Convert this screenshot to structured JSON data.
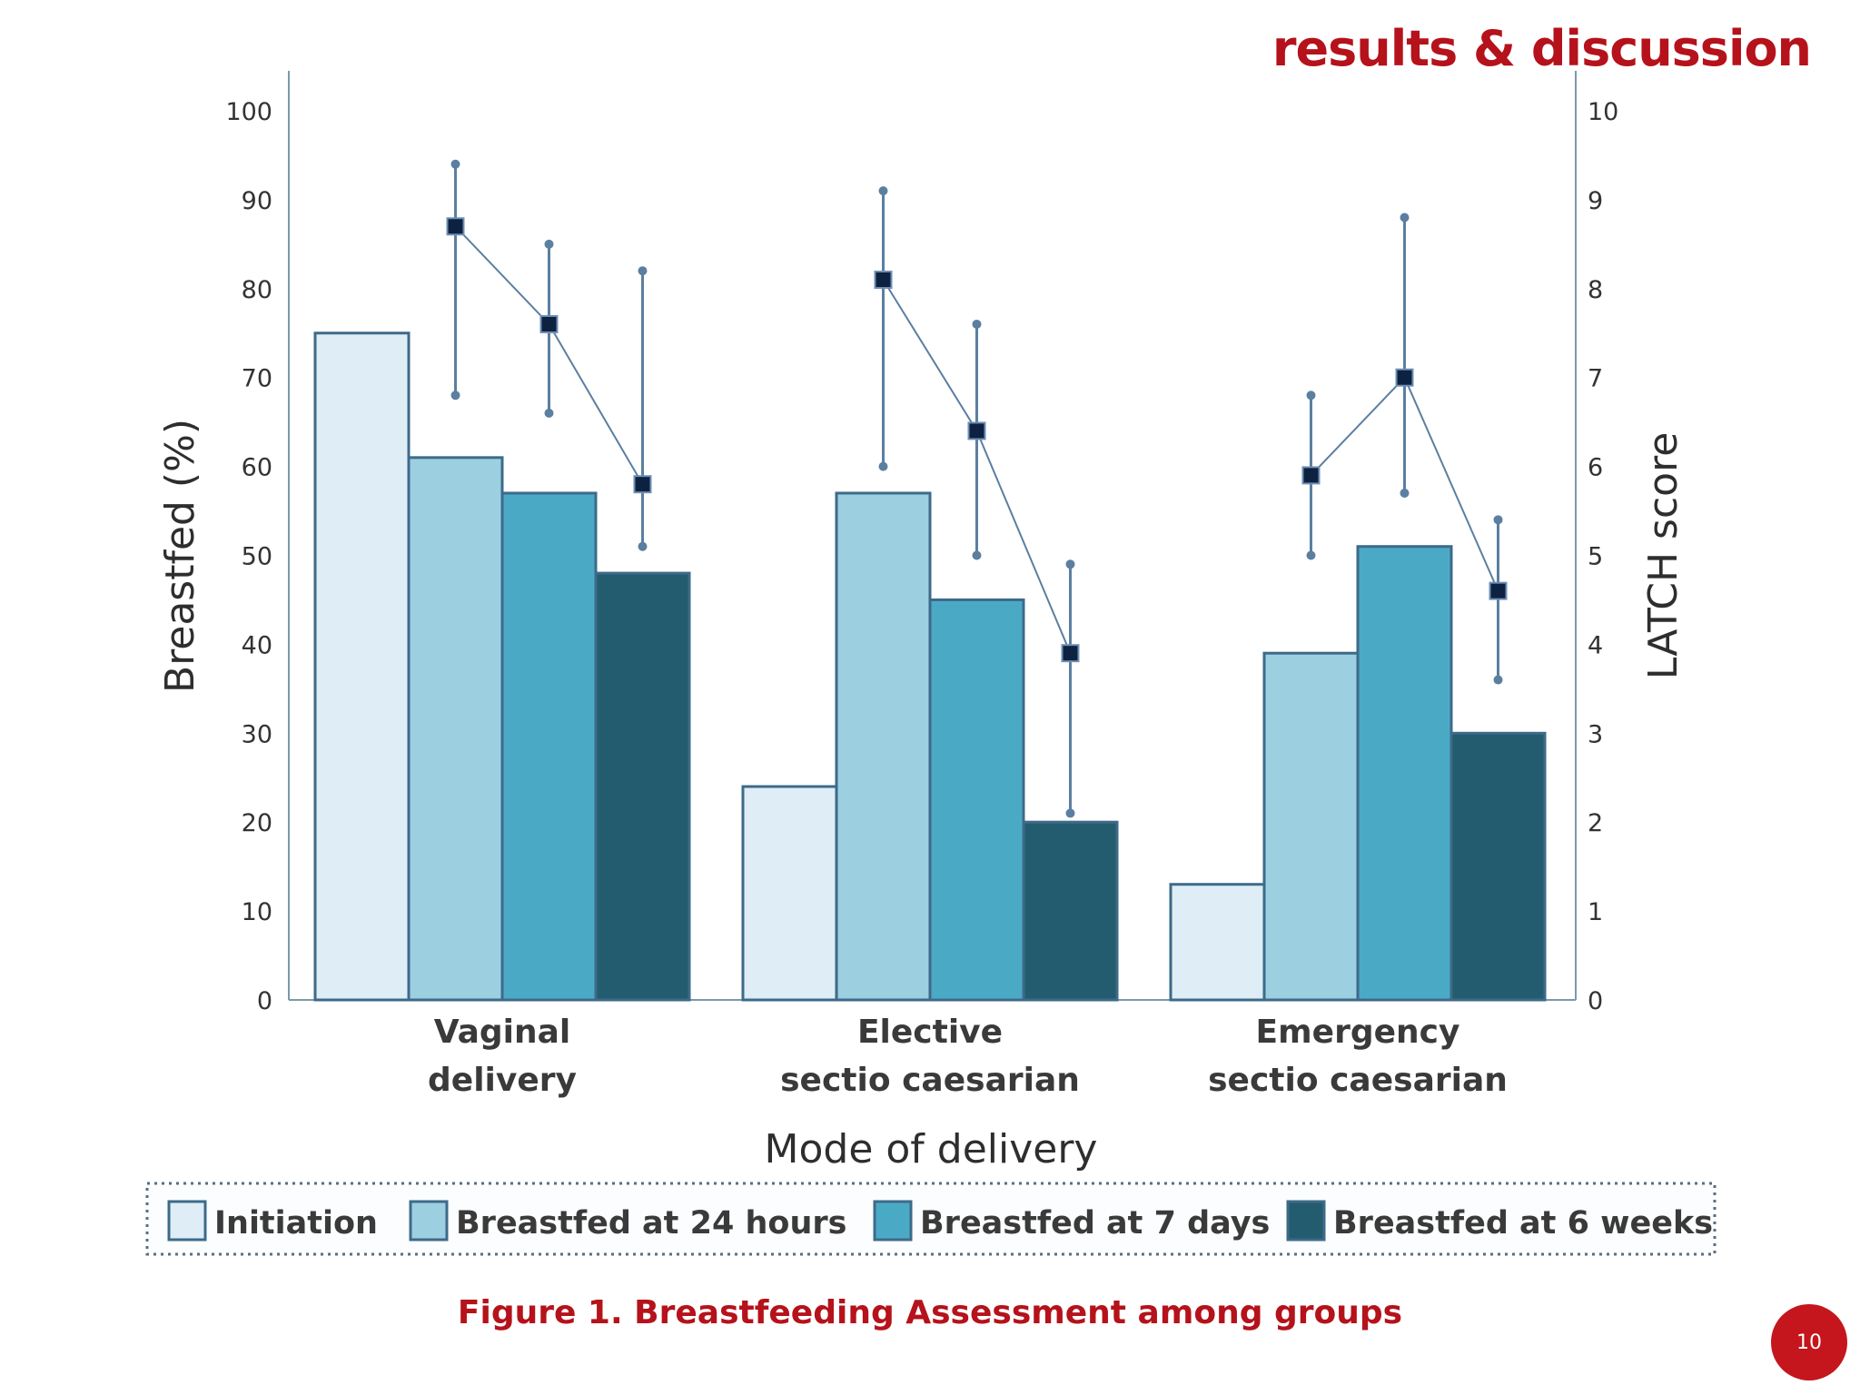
{
  "header": {
    "section_title": "results & discussion"
  },
  "caption": "Figure 1. Breastfeeding Assessment  among groups",
  "page_number": "10",
  "chart_data": {
    "type": "bar",
    "title": "",
    "xlabel": "Mode of delivery",
    "ylabel": "Breastfed (%)",
    "y2label": "LATCH score",
    "ylim": [
      0,
      100
    ],
    "y2lim": [
      0,
      10
    ],
    "yticks": [
      "0",
      "10",
      "20",
      "30",
      "40",
      "50",
      "60",
      "70",
      "80",
      "90",
      "100"
    ],
    "y2ticks": [
      "0",
      "1",
      "2",
      "3",
      "4",
      "5",
      "6",
      "7",
      "8",
      "9",
      "10"
    ],
    "categories": [
      {
        "line1": "Vaginal",
        "line2": "delivery"
      },
      {
        "line1": "Elective",
        "line2": "sectio caesarian"
      },
      {
        "line1": "Emergency",
        "line2": "sectio caesarian"
      }
    ],
    "series": [
      {
        "name": "Initiation",
        "color": "#deedf6",
        "values": [
          75,
          24,
          13
        ]
      },
      {
        "name": "Breastfed at 24 hours",
        "color": "#9ccfe0",
        "values": [
          61,
          57,
          39
        ]
      },
      {
        "name": "Breastfed at 7 days",
        "color": "#4aaac6",
        "values": [
          57,
          45,
          51
        ]
      },
      {
        "name": "Breastfed at 6 weeks",
        "color": "#235c6e",
        "values": [
          48,
          20,
          30
        ]
      }
    ],
    "latch": [
      {
        "category": 0,
        "points": [
          {
            "series": 1,
            "mean": 8.7,
            "low": 6.8,
            "high": 9.4
          },
          {
            "series": 2,
            "mean": 7.6,
            "low": 6.6,
            "high": 8.5
          },
          {
            "series": 3,
            "mean": 5.8,
            "low": 5.1,
            "high": 8.2
          }
        ]
      },
      {
        "category": 1,
        "points": [
          {
            "series": 1,
            "mean": 8.1,
            "low": 6.0,
            "high": 9.1
          },
          {
            "series": 2,
            "mean": 6.4,
            "low": 5.0,
            "high": 7.6
          },
          {
            "series": 3,
            "mean": 3.9,
            "low": 2.1,
            "high": 4.9
          }
        ]
      },
      {
        "category": 2,
        "points": [
          {
            "series": 1,
            "mean": 5.9,
            "low": 5.0,
            "high": 6.8
          },
          {
            "series": 2,
            "mean": 7.0,
            "low": 5.7,
            "high": 8.8
          },
          {
            "series": 3,
            "mean": 4.6,
            "low": 3.6,
            "high": 5.4
          }
        ]
      }
    ],
    "legend": "bottom"
  }
}
